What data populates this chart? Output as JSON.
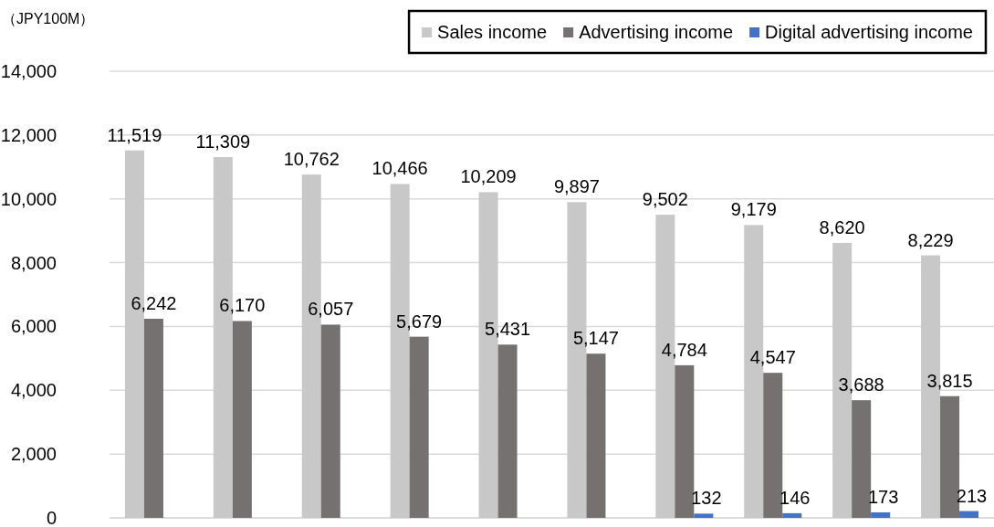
{
  "chart_data": {
    "type": "bar",
    "ylabel": "（JPY100M）",
    "categories": [
      null,
      null,
      null,
      null,
      null,
      null,
      null,
      null,
      null,
      null
    ],
    "series": [
      {
        "name": "Sales income",
        "color": "#c8c8c8",
        "values": [
          11519,
          11309,
          10762,
          10466,
          10209,
          9897,
          9502,
          9179,
          8620,
          8229
        ],
        "value_labels": [
          "11,519",
          "11,309",
          "10,762",
          "10,466",
          "10,209",
          "9,897",
          "9,502",
          "9,179",
          "8,620",
          "8,229"
        ]
      },
      {
        "name": "Advertising income",
        "color": "#767171",
        "values": [
          6242,
          6170,
          6057,
          5679,
          5431,
          5147,
          4784,
          4547,
          3688,
          3815
        ],
        "value_labels": [
          "6,242",
          "6,170",
          "6,057",
          "5,679",
          "5,431",
          "5,147",
          "4,784",
          "4,547",
          "3,688",
          "3,815"
        ]
      },
      {
        "name": "Digital advertising income",
        "color": "#4472c4",
        "values": [
          null,
          null,
          null,
          null,
          null,
          null,
          132,
          146,
          173,
          213
        ],
        "value_labels": [
          null,
          null,
          null,
          null,
          null,
          null,
          "132",
          "146",
          "173",
          "213"
        ]
      }
    ],
    "ylim": [
      0,
      14000
    ],
    "yticks": [
      {
        "value": 0,
        "label": "0"
      },
      {
        "value": 2000,
        "label": "2,000"
      },
      {
        "value": 4000,
        "label": "4,000"
      },
      {
        "value": 6000,
        "label": "6,000"
      },
      {
        "value": 8000,
        "label": "8,000"
      },
      {
        "value": 10000,
        "label": "10,000"
      },
      {
        "value": 12000,
        "label": "12,000"
      },
      {
        "value": 14000,
        "label": "14,000"
      }
    ],
    "grid": "y",
    "legend": "top right"
  }
}
